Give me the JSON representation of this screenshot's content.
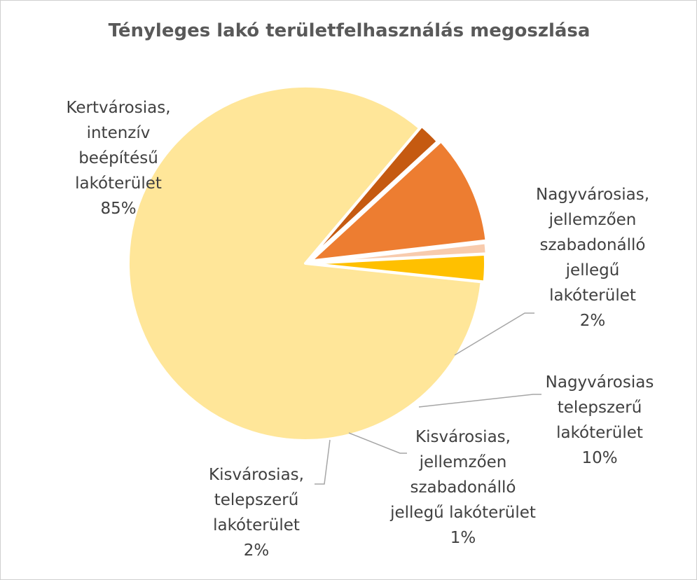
{
  "chart_data": {
    "type": "pie",
    "title": "Tényleges lakó területfelhasználás megoszlása",
    "slices": [
      {
        "label": "Kertvárosias, intenzív beépítésű lakóterület",
        "label_lines": [
          "Kertvárosias,",
          "intenzív",
          "beépítésű",
          "lakóterület"
        ],
        "value_label": "85%",
        "value": 84.5,
        "color": "#FFE699"
      },
      {
        "label": "Nagyvárosias, jellemzően szabadonálló jellegű lakóterület",
        "label_lines": [
          "Nagyvárosias,",
          "jellemzően",
          "szabadonálló",
          "jellegű",
          "lakóterület"
        ],
        "value_label": "2%",
        "value": 2.0,
        "color": "#C55A11"
      },
      {
        "label": "Nagyvárosias telepszerű lakóterület",
        "label_lines": [
          "Nagyvárosias",
          "telepszerű",
          "lakóterület"
        ],
        "value_label": "10%",
        "value": 10.0,
        "color": "#ED7D31"
      },
      {
        "label": "Kisvárosias, jellemzően szabadonálló jellegű lakóterület",
        "label_lines": [
          "Kisvárosias,",
          "jellemzően",
          "szabadonálló",
          "jellegű lakóterület"
        ],
        "value_label": "1%",
        "value": 1.0,
        "color": "#F8CBAD"
      },
      {
        "label": "Kisvárosias, telepszerű lakóterület",
        "label_lines": [
          "Kisvárosias,",
          "telepszerű",
          "lakóterület"
        ],
        "value_label": "2%",
        "value": 2.5,
        "color": "#FFC000"
      }
    ],
    "legend": "none",
    "leader_line_color": "#A6A6A6"
  }
}
